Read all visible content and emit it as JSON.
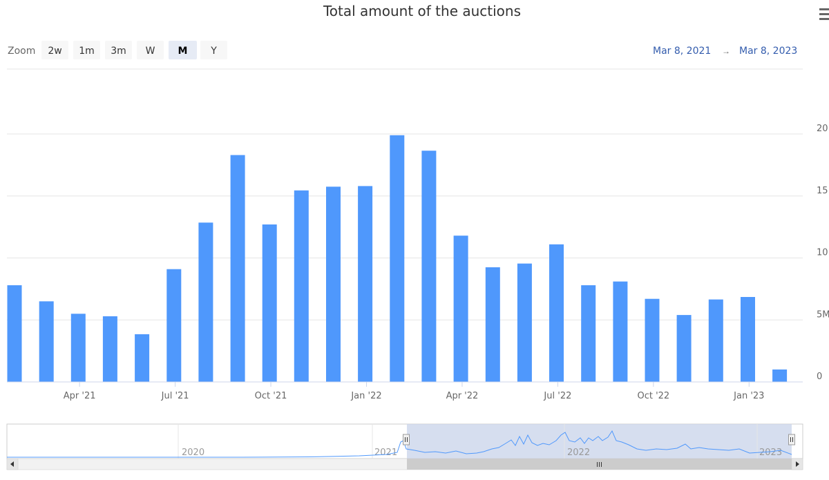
{
  "chart_data": {
    "type": "bar",
    "title": "Total amount of the auctions",
    "xlabel": "",
    "ylabel": "",
    "ylim": [
      0,
      20000000
    ],
    "y_tick_labels": [
      "0",
      "5M",
      "10",
      "15",
      "20"
    ],
    "x_tick_labels": [
      "Apr '21",
      "Jul '21",
      "Oct '21",
      "Jan '22",
      "Apr '22",
      "Jul '22",
      "Oct '22",
      "Jan '23"
    ],
    "series": [
      {
        "categories": [
          "Mar 2021",
          "Apr 2021",
          "May 2021",
          "Jun 2021",
          "Jul 2021",
          "Aug 2021",
          "Sep 2021",
          "Oct 2021",
          "Nov 2021",
          "Dec 2021",
          "Jan 2022",
          "Feb 2022",
          "Mar 2022",
          "Apr 2022",
          "May 2022",
          "Jun 2022",
          "Jul 2022",
          "Aug 2022",
          "Sep 2022",
          "Oct 2022",
          "Nov 2022",
          "Dec 2022",
          "Jan 2023",
          "Feb 2023",
          "Mar 2023"
        ],
        "values": [
          7800000,
          6500000,
          5500000,
          5300000,
          3850000,
          9100000,
          12850000,
          18300000,
          12700000,
          15450000,
          15750000,
          15800000,
          19900000,
          18650000,
          11800000,
          9250000,
          9550000,
          11100000,
          7800000,
          8100000,
          6700000,
          5400000,
          6650000,
          6850000,
          1000000
        ]
      }
    ],
    "grid": true,
    "legend": "none",
    "bar_color": "#4f98fc"
  },
  "zoom": {
    "label": "Zoom",
    "buttons": [
      {
        "label": "2w",
        "active": false
      },
      {
        "label": "1m",
        "active": false
      },
      {
        "label": "3m",
        "active": false
      },
      {
        "label": "W",
        "active": false
      },
      {
        "label": "M",
        "active": true
      },
      {
        "label": "Y",
        "active": false
      }
    ]
  },
  "range": {
    "from": "Mar 8, 2021",
    "arrow": "→",
    "to": "Mar 8, 2023"
  },
  "navigator": {
    "labels": [
      "2020",
      "2021",
      "2022",
      "2023"
    ],
    "selected_range": "Mar 8, 2021 – Mar 8, 2023"
  },
  "menu": {
    "icon": "hamburger-menu-icon"
  },
  "colors": {
    "bar": "#4f98fc",
    "range_text": "#335cad",
    "navigator_mask": "#ccd6eb"
  }
}
